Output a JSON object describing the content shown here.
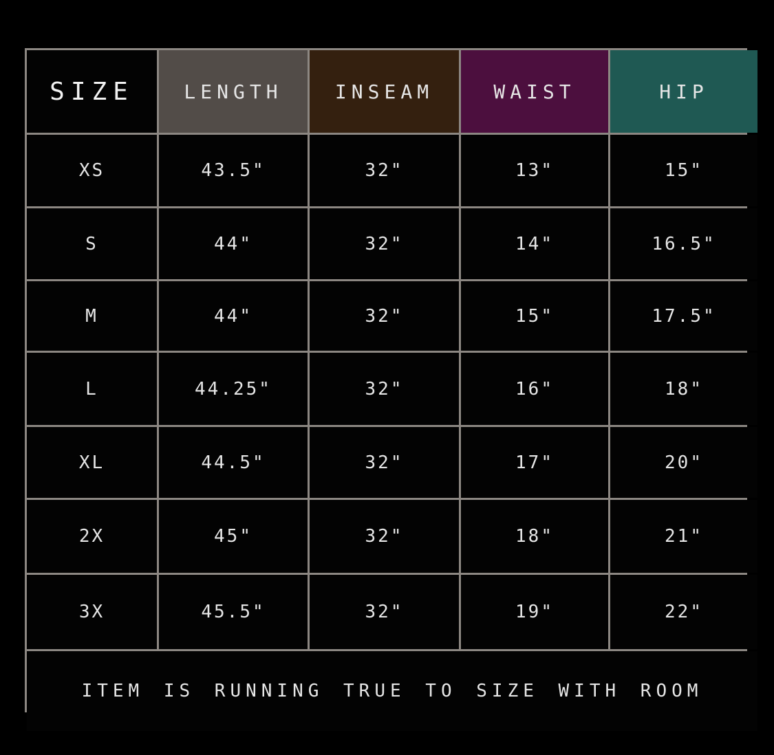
{
  "header": {
    "columns": [
      {
        "label": "SIZE",
        "color": "#030303"
      },
      {
        "label": "LENGTH",
        "color": "#524c48"
      },
      {
        "label": "INSEAM",
        "color": "#34200f"
      },
      {
        "label": "WAIST",
        "color": "#4c0f3e"
      },
      {
        "label": "HIP",
        "color": "#1f5953"
      }
    ]
  },
  "rows": [
    [
      "XS",
      "43.5\"",
      "32\"",
      "13\"",
      "15\""
    ],
    [
      "S",
      "44\"",
      "32\"",
      "14\"",
      "16.5\""
    ],
    [
      "M",
      "44\"",
      "32\"",
      "15\"",
      "17.5\""
    ],
    [
      "L",
      "44.25\"",
      "32\"",
      "16\"",
      "18\""
    ],
    [
      "XL",
      "44.5\"",
      "32\"",
      "17\"",
      "20\""
    ],
    [
      "2X",
      "45\"",
      "32\"",
      "18\"",
      "21\""
    ],
    [
      "3X",
      "45.5\"",
      "32\"",
      "19\"",
      "22\""
    ]
  ],
  "footer": "ITEM IS RUNNING TRUE TO SIZE WITH ROOM"
}
